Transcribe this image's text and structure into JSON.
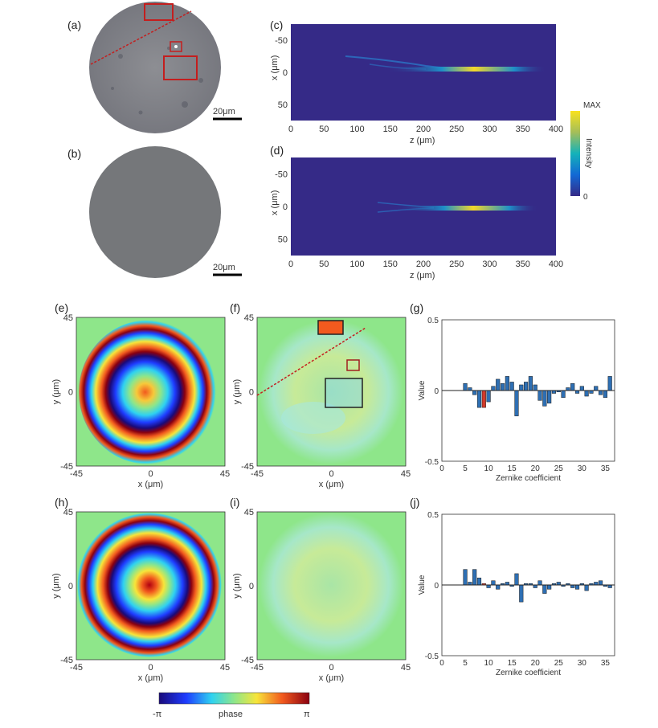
{
  "panels": {
    "a": {
      "label": "(a)",
      "scalebar": "20μm"
    },
    "b": {
      "label": "(b)",
      "scalebar": "20μm"
    },
    "c": {
      "label": "(c)"
    },
    "d": {
      "label": "(d)"
    },
    "e": {
      "label": "(e)"
    },
    "f": {
      "label": "(f)"
    },
    "g": {
      "label": "(g)"
    },
    "h": {
      "label": "(h)"
    },
    "i": {
      "label": "(i)"
    },
    "j": {
      "label": "(j)"
    }
  },
  "intensity_axes": {
    "xlabel": "z (μm)",
    "ylabel": "x (μm)",
    "xticks": [
      "0",
      "50",
      "100",
      "150",
      "200",
      "250",
      "300",
      "350",
      "400"
    ],
    "yticks": [
      "-50",
      "0",
      "50"
    ]
  },
  "intensity_colorbar": {
    "top": "MAX",
    "bottom": "0",
    "label": "Intensity"
  },
  "phase_axes": {
    "xlabel": "x (μm)",
    "ylabel": "y (μm)",
    "xticks": [
      "-45",
      "0",
      "45"
    ],
    "yticks": [
      "45",
      "0",
      "-45"
    ]
  },
  "phase_colorbar": {
    "left": "-π",
    "center": "phase",
    "right": "π"
  },
  "zernike_axes": {
    "xlabel": "Zernike coefficient",
    "ylabel": "Value",
    "yticks": [
      "0.5",
      "0",
      "-0.5"
    ],
    "xticks": [
      "0",
      "5",
      "10",
      "15",
      "20",
      "25",
      "30",
      "35"
    ]
  },
  "chart_data": [
    {
      "panel": "g",
      "type": "bar",
      "xlabel": "Zernike coefficient",
      "ylabel": "Value",
      "ylim": [
        -0.5,
        0.5
      ],
      "xlim": [
        0,
        37
      ],
      "x": [
        5,
        6,
        7,
        8,
        9,
        10,
        11,
        12,
        13,
        14,
        15,
        16,
        17,
        18,
        19,
        20,
        21,
        22,
        23,
        24,
        25,
        26,
        27,
        28,
        29,
        30,
        31,
        32,
        33,
        34,
        35,
        36
      ],
      "values": [
        0.05,
        0.02,
        -0.03,
        -0.12,
        -0.12,
        -0.08,
        0.03,
        0.08,
        0.05,
        0.1,
        0.06,
        -0.18,
        0.04,
        0.06,
        0.1,
        0.04,
        -0.07,
        -0.11,
        -0.09,
        -0.02,
        -0.01,
        -0.05,
        0.02,
        0.05,
        -0.02,
        0.03,
        -0.04,
        -0.02,
        0.03,
        -0.03,
        -0.05,
        0.1
      ],
      "highlight_x": [
        9
      ],
      "bar_color": "#2e6fb3",
      "highlight_color": "#d23a2a"
    },
    {
      "panel": "j",
      "type": "bar",
      "xlabel": "Zernike coefficient",
      "ylabel": "Value",
      "ylim": [
        -0.5,
        0.5
      ],
      "xlim": [
        0,
        37
      ],
      "x": [
        5,
        6,
        7,
        8,
        9,
        10,
        11,
        12,
        13,
        14,
        15,
        16,
        17,
        18,
        19,
        20,
        21,
        22,
        23,
        24,
        25,
        26,
        27,
        28,
        29,
        30,
        31,
        32,
        33,
        34,
        35,
        36
      ],
      "values": [
        0.11,
        0.02,
        0.11,
        0.05,
        0.01,
        -0.02,
        0.03,
        -0.03,
        0.01,
        0.02,
        -0.01,
        0.08,
        -0.12,
        0.01,
        0.01,
        -0.02,
        0.03,
        -0.06,
        -0.03,
        0.01,
        0.02,
        -0.01,
        0.01,
        -0.02,
        -0.03,
        0.01,
        -0.04,
        0.01,
        0.02,
        0.03,
        -0.01,
        -0.02
      ],
      "highlight_x": [
        9
      ],
      "bar_color": "#2e6fb3",
      "highlight_color": "#d23a2a"
    }
  ]
}
